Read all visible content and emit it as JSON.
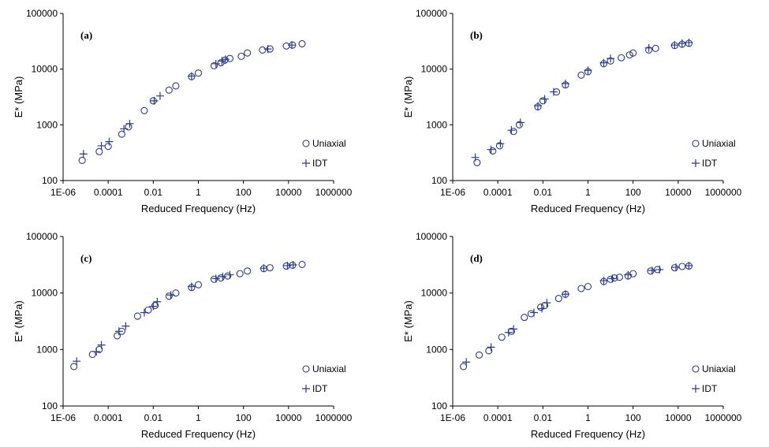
{
  "colors": {
    "marker": "#2b3a8c"
  },
  "chart_data": [
    {
      "type": "scatter",
      "panel_label": "(a)",
      "xlabel": "Reduced Frequency (Hz)",
      "ylabel": "E* (MPa)",
      "xscale": "log",
      "yscale": "log",
      "xlim": [
        1e-06,
        1000000
      ],
      "ylim": [
        100,
        100000
      ],
      "xticks": [
        "1E-06",
        "0.0001",
        "0.01",
        "1",
        "100",
        "10000",
        "1000000"
      ],
      "yticks": [
        "100",
        "1000",
        "10000",
        "100000"
      ],
      "legend_position": "bottom-right",
      "series": [
        {
          "name": "Uniaxial",
          "marker": "circle",
          "x": [
            7e-06,
            4e-05,
            0.0001,
            0.0004,
            0.0008,
            0.004,
            0.01,
            0.05,
            0.1,
            0.5,
            1,
            5,
            10,
            15,
            25,
            80,
            150,
            700,
            1500,
            8000,
            15000,
            40000
          ],
          "y": [
            230,
            330,
            410,
            680,
            920,
            1800,
            2700,
            4200,
            5000,
            7300,
            8500,
            11500,
            13000,
            14500,
            15500,
            17000,
            19500,
            22000,
            23000,
            26000,
            27000,
            28500
          ]
        },
        {
          "name": "IDT",
          "marker": "plus",
          "x": [
            8e-06,
            5e-05,
            0.00011,
            0.0005,
            0.0009,
            0.011,
            0.02,
            0.5,
            6,
            11,
            16,
            1200,
            14000
          ],
          "y": [
            300,
            420,
            500,
            850,
            1050,
            2700,
            3300,
            7500,
            12500,
            14000,
            15000,
            23000,
            27000
          ]
        }
      ]
    },
    {
      "type": "scatter",
      "panel_label": "(b)",
      "xlabel": "Reduced Frequency (Hz)",
      "ylabel": "E* (MPa)",
      "xscale": "log",
      "yscale": "log",
      "xlim": [
        1e-06,
        1000000
      ],
      "ylim": [
        100,
        100000
      ],
      "xticks": [
        "1E-06",
        "0.0001",
        "0.01",
        "1",
        "100",
        "10000",
        "1000000"
      ],
      "yticks": [
        "100",
        "1000",
        "10000",
        "100000"
      ],
      "legend_position": "bottom-right",
      "series": [
        {
          "name": "Uniaxial",
          "marker": "circle",
          "x": [
            1.2e-05,
            6e-05,
            0.00012,
            0.0005,
            0.0009,
            0.006,
            0.01,
            0.04,
            0.1,
            0.5,
            1,
            5,
            10,
            30,
            70,
            100,
            500,
            1000,
            7000,
            15000,
            30000
          ],
          "y": [
            210,
            340,
            420,
            760,
            1000,
            2100,
            2700,
            3900,
            5200,
            7800,
            9000,
            12500,
            14000,
            16000,
            18000,
            19500,
            22000,
            23500,
            26500,
            28000,
            29000
          ]
        },
        {
          "name": "IDT",
          "marker": "plus",
          "x": [
            1e-05,
            5e-05,
            0.00013,
            0.0004,
            0.001,
            0.006,
            0.012,
            0.03,
            0.1,
            1,
            5,
            10,
            500,
            7000,
            15000,
            30000
          ],
          "y": [
            260,
            360,
            460,
            800,
            1100,
            2200,
            2900,
            3900,
            5500,
            9500,
            13000,
            15500,
            24000,
            27000,
            29000,
            30000
          ]
        }
      ]
    },
    {
      "type": "scatter",
      "panel_label": "(c)",
      "xlabel": "Reduced Frequency (Hz)",
      "ylabel": "E* (MPa)",
      "xscale": "log",
      "yscale": "log",
      "xlim": [
        1e-06,
        1000000
      ],
      "ylim": [
        100,
        100000
      ],
      "xticks": [
        "1E-06",
        "0.0001",
        "0.01",
        "1",
        "100",
        "10000",
        "1000000"
      ],
      "yticks": [
        "100",
        "1000",
        "10000",
        "100000"
      ],
      "legend_position": "bottom-right",
      "series": [
        {
          "name": "Uniaxial",
          "marker": "circle",
          "x": [
            3e-06,
            2e-05,
            4e-05,
            0.00025,
            0.0004,
            0.002,
            0.006,
            0.012,
            0.05,
            0.1,
            0.5,
            1,
            5,
            10,
            20,
            70,
            150,
            800,
            1500,
            8000,
            15000,
            40000
          ],
          "y": [
            500,
            820,
            1000,
            1750,
            2100,
            3900,
            5000,
            6000,
            8800,
            10000,
            12500,
            14000,
            17500,
            18500,
            20000,
            22000,
            24500,
            27000,
            28000,
            30000,
            31000,
            32000
          ]
        },
        {
          "name": "IDT",
          "marker": "plus",
          "x": [
            4e-06,
            3e-05,
            5e-05,
            0.0003,
            0.0006,
            0.004,
            0.01,
            0.015,
            0.06,
            0.5,
            6,
            12,
            25,
            800,
            9000,
            16000
          ],
          "y": [
            620,
            920,
            1200,
            2100,
            2600,
            4500,
            5800,
            7000,
            9200,
            13000,
            18000,
            19500,
            21000,
            27500,
            30500,
            31500
          ]
        }
      ]
    },
    {
      "type": "scatter",
      "panel_label": "(d)",
      "xlabel": "Reduced Frequency (Hz)",
      "ylabel": "E* (MPa)",
      "xscale": "log",
      "yscale": "log",
      "xlim": [
        1e-06,
        1000000
      ],
      "ylim": [
        100,
        100000
      ],
      "xticks": [
        "1E-06",
        "0.0001",
        "0.01",
        "1",
        "100",
        "10000",
        "1000000"
      ],
      "yticks": [
        "100",
        "1000",
        "10000",
        "100000"
      ],
      "legend_position": "bottom-right",
      "series": [
        {
          "name": "Uniaxial",
          "marker": "circle",
          "x": [
            3e-06,
            1.5e-05,
            4e-05,
            0.00015,
            0.0004,
            0.0015,
            0.003,
            0.008,
            0.012,
            0.05,
            0.1,
            0.5,
            1,
            5,
            10,
            15,
            25,
            60,
            100,
            600,
            1200,
            7000,
            15000,
            30000
          ],
          "y": [
            500,
            800,
            950,
            1650,
            2100,
            3700,
            4300,
            5600,
            6000,
            8000,
            9500,
            12000,
            13000,
            16000,
            17500,
            18500,
            19000,
            20000,
            22000,
            24500,
            26000,
            28000,
            29500,
            30000
          ]
        },
        {
          "name": "IDT",
          "marker": "plus",
          "x": [
            4e-06,
            5e-05,
            0.0003,
            0.0005,
            0.004,
            0.009,
            0.015,
            0.1,
            5,
            12,
            60,
            700,
            1500,
            8000,
            30000
          ],
          "y": [
            600,
            1100,
            2000,
            2300,
            4500,
            5300,
            6700,
            9500,
            16500,
            18000,
            21000,
            25000,
            26000,
            28500,
            30500
          ]
        }
      ]
    }
  ]
}
